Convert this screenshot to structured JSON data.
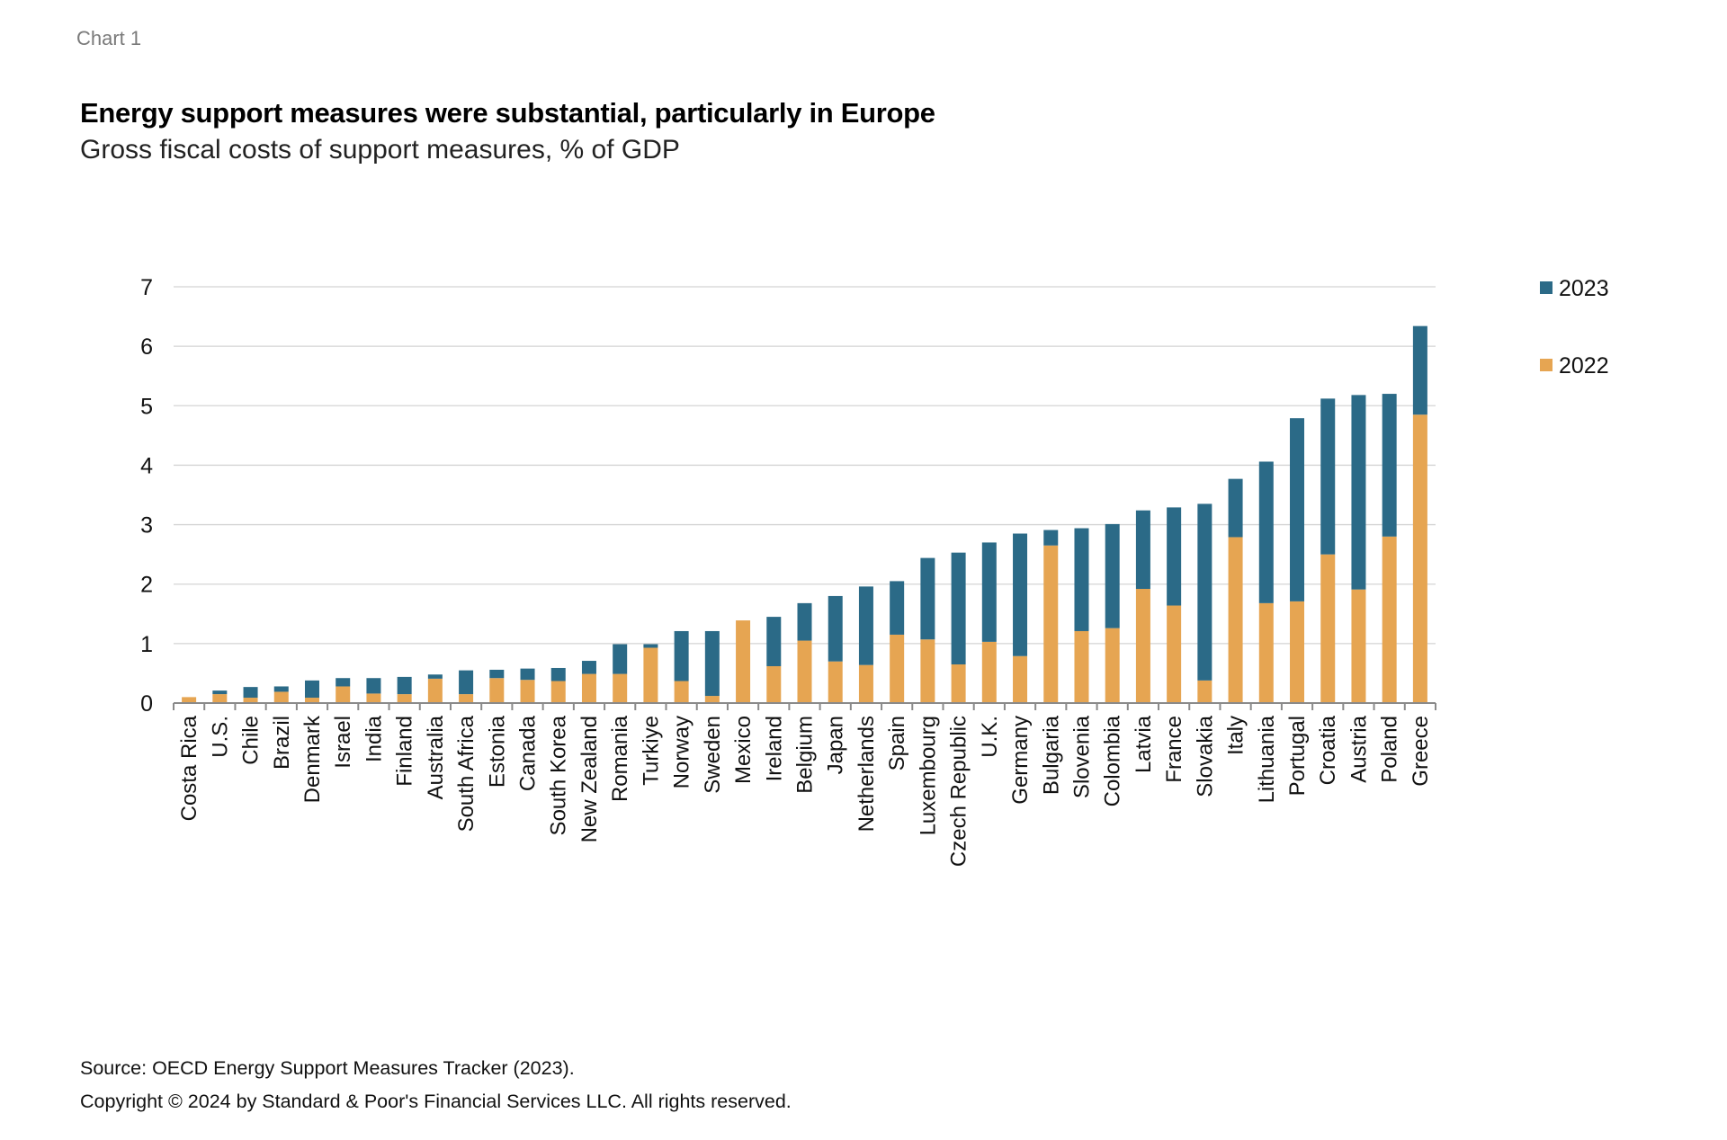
{
  "header": {
    "chart_number": "Chart 1",
    "title": "Energy support measures were substantial, particularly in Europe",
    "subtitle": "Gross fiscal costs of support measures, % of GDP"
  },
  "footer": {
    "source": "Source: OECD Energy Support Measures Tracker (2023).",
    "copyright": "Copyright © 2024 by Standard & Poor's Financial Services LLC. All rights reserved."
  },
  "colors": {
    "2023": "#2b6a87",
    "2022": "#e6a552",
    "grid": "#d4d4d4",
    "axis": "#8a8a8a"
  },
  "chart_data": {
    "type": "bar",
    "stacked": true,
    "title": "Energy support measures were substantial, particularly in Europe",
    "subtitle": "Gross fiscal costs of support measures, % of GDP",
    "xlabel": "",
    "ylabel": "",
    "ylim": [
      0,
      7
    ],
    "yticks": [
      0,
      1,
      2,
      3,
      4,
      5,
      6,
      7
    ],
    "grid": true,
    "legend_position": "top-right",
    "categories": [
      "Costa Rica",
      "U.S.",
      "Chile",
      "Brazil",
      "Denmark",
      "Israel",
      "India",
      "Finland",
      "Australia",
      "South Africa",
      "Estonia",
      "Canada",
      "South Korea",
      "New Zealand",
      "Romania",
      "Turkiye",
      "Norway",
      "Sweden",
      "Mexico",
      "Ireland",
      "Belgium",
      "Japan",
      "Netherlands",
      "Spain",
      "Luxembourg",
      "Czech Republic",
      "U.K.",
      "Germany",
      "Bulgaria",
      "Slovenia",
      "Colombia",
      "Latvia",
      "France",
      "Slovakia",
      "Italy",
      "Lithuania",
      "Portugal",
      "Croatia",
      "Austria",
      "Poland",
      "Greece"
    ],
    "series": [
      {
        "name": "2022",
        "values": [
          0.1,
          0.15,
          0.09,
          0.19,
          0.09,
          0.28,
          0.16,
          0.15,
          0.41,
          0.15,
          0.42,
          0.39,
          0.37,
          0.49,
          0.49,
          0.93,
          0.37,
          0.12,
          1.39,
          0.62,
          1.05,
          0.7,
          0.64,
          1.15,
          1.07,
          0.65,
          1.03,
          0.79,
          2.65,
          1.21,
          1.26,
          1.92,
          1.64,
          0.38,
          2.79,
          1.68,
          1.71,
          2.5,
          1.91,
          2.8,
          4.85
        ]
      },
      {
        "name": "2023",
        "values": [
          0.0,
          0.06,
          0.18,
          0.09,
          0.29,
          0.14,
          0.26,
          0.29,
          0.07,
          0.4,
          0.14,
          0.19,
          0.22,
          0.22,
          0.5,
          0.06,
          0.84,
          1.09,
          0.0,
          0.83,
          0.63,
          1.1,
          1.32,
          0.9,
          1.37,
          1.88,
          1.67,
          2.06,
          0.26,
          1.73,
          1.75,
          1.32,
          1.65,
          2.97,
          0.98,
          2.38,
          3.08,
          2.62,
          3.27,
          2.4,
          1.49
        ]
      }
    ],
    "legend": [
      "2023",
      "2022"
    ]
  }
}
